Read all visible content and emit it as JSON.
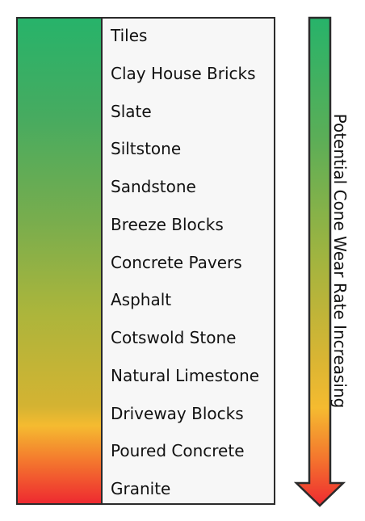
{
  "materials": [
    "Tiles",
    "Clay House Bricks",
    "Slate",
    "Siltstone",
    "Sandstone",
    "Breeze Blocks",
    "Concrete Pavers",
    "Asphalt",
    "Cotswold Stone",
    "Natural Limestone",
    "Driveway Blocks",
    "Poured Concrete",
    "Granite"
  ],
  "arrow_label": "Potential  Cone Wear Rate Increasing",
  "colors": {
    "low_wear": "#27b36a",
    "mid_wear": "#aab53c",
    "warn_wear": "#f5bb30",
    "high_wear": "#ee2a30",
    "border": "#2b2b2b"
  }
}
